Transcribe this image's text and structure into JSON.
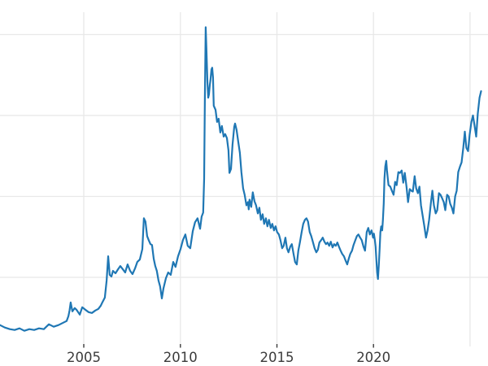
{
  "figure": {
    "background_color": "#ffffff",
    "title": "",
    "y_axis_labels_visible": false
  },
  "chart_data": {
    "type": "line",
    "title": "",
    "xlabel": "",
    "ylabel": "",
    "grid": true,
    "legend": false,
    "colors": {
      "line": "#1f77b4",
      "gridline": "#e8e8e8",
      "tick": "#3b3b3b",
      "tick_label": "#3b3b3b"
    },
    "x_range": [
      2000.66,
      2025.93
    ],
    "y_range": [
      1.76,
      42.76
    ],
    "x_gridline_years": [
      2005,
      2010,
      2015,
      2020,
      2025
    ],
    "x_ticks": [
      {
        "year": 2005,
        "label": "2005"
      },
      {
        "year": 2010,
        "label": "2010"
      },
      {
        "year": 2015,
        "label": "2015"
      },
      {
        "year": 2020,
        "label": "2020"
      },
      {
        "year": 2025,
        "label": ""
      }
    ],
    "y_gridlines": [
      10,
      20,
      30,
      40
    ],
    "series": [
      {
        "name": "",
        "color": "#1f77b4",
        "points": [
          [
            2000.66,
            4.1
          ],
          [
            2000.91,
            3.8
          ],
          [
            2001.17,
            3.6
          ],
          [
            2001.42,
            3.5
          ],
          [
            2001.67,
            3.7
          ],
          [
            2001.92,
            3.4
          ],
          [
            2002.18,
            3.6
          ],
          [
            2002.43,
            3.5
          ],
          [
            2002.68,
            3.7
          ],
          [
            2002.93,
            3.6
          ],
          [
            2003.19,
            4.2
          ],
          [
            2003.44,
            3.9
          ],
          [
            2003.69,
            4.1
          ],
          [
            2003.94,
            4.4
          ],
          [
            2004.11,
            4.6
          ],
          [
            2004.2,
            5.2
          ],
          [
            2004.26,
            5.9
          ],
          [
            2004.32,
            6.9
          ],
          [
            2004.41,
            5.8
          ],
          [
            2004.53,
            6.2
          ],
          [
            2004.62,
            6.0
          ],
          [
            2004.79,
            5.4
          ],
          [
            2004.92,
            6.3
          ],
          [
            2005.08,
            6.0
          ],
          [
            2005.25,
            5.7
          ],
          [
            2005.42,
            5.6
          ],
          [
            2005.59,
            5.9
          ],
          [
            2005.75,
            6.1
          ],
          [
            2005.88,
            6.5
          ],
          [
            2005.96,
            6.9
          ],
          [
            2006.09,
            7.5
          ],
          [
            2006.18,
            9.6
          ],
          [
            2006.26,
            12.6
          ],
          [
            2006.34,
            10.3
          ],
          [
            2006.43,
            10.1
          ],
          [
            2006.51,
            10.8
          ],
          [
            2006.64,
            10.5
          ],
          [
            2006.77,
            11.0
          ],
          [
            2006.89,
            11.4
          ],
          [
            2007.02,
            11.0
          ],
          [
            2007.14,
            10.6
          ],
          [
            2007.27,
            11.6
          ],
          [
            2007.4,
            10.8
          ],
          [
            2007.52,
            10.4
          ],
          [
            2007.65,
            11.1
          ],
          [
            2007.77,
            11.9
          ],
          [
            2007.9,
            12.2
          ],
          [
            2008.03,
            13.5
          ],
          [
            2008.11,
            17.3
          ],
          [
            2008.19,
            16.9
          ],
          [
            2008.28,
            15.1
          ],
          [
            2008.36,
            14.6
          ],
          [
            2008.45,
            14.1
          ],
          [
            2008.53,
            14.0
          ],
          [
            2008.62,
            12.3
          ],
          [
            2008.7,
            11.4
          ],
          [
            2008.78,
            10.8
          ],
          [
            2008.87,
            9.6
          ],
          [
            2008.95,
            8.9
          ],
          [
            2009.04,
            7.4
          ],
          [
            2009.12,
            8.6
          ],
          [
            2009.25,
            9.9
          ],
          [
            2009.37,
            10.6
          ],
          [
            2009.5,
            10.3
          ],
          [
            2009.63,
            11.9
          ],
          [
            2009.75,
            11.3
          ],
          [
            2009.88,
            12.6
          ],
          [
            2010.01,
            13.5
          ],
          [
            2010.13,
            14.6
          ],
          [
            2010.26,
            15.3
          ],
          [
            2010.38,
            13.9
          ],
          [
            2010.51,
            13.6
          ],
          [
            2010.64,
            15.7
          ],
          [
            2010.76,
            16.8
          ],
          [
            2010.89,
            17.3
          ],
          [
            2011.02,
            16.0
          ],
          [
            2011.1,
            17.5
          ],
          [
            2011.18,
            18.0
          ],
          [
            2011.23,
            22.2
          ],
          [
            2011.27,
            32.2
          ],
          [
            2011.31,
            40.9
          ],
          [
            2011.35,
            38.2
          ],
          [
            2011.4,
            34.2
          ],
          [
            2011.44,
            32.2
          ],
          [
            2011.48,
            32.6
          ],
          [
            2011.52,
            33.7
          ],
          [
            2011.56,
            34.4
          ],
          [
            2011.61,
            35.7
          ],
          [
            2011.65,
            35.9
          ],
          [
            2011.69,
            34.7
          ],
          [
            2011.73,
            31.2
          ],
          [
            2011.82,
            30.7
          ],
          [
            2011.9,
            29.2
          ],
          [
            2011.98,
            29.6
          ],
          [
            2012.07,
            27.9
          ],
          [
            2012.15,
            28.7
          ],
          [
            2012.24,
            27.4
          ],
          [
            2012.32,
            27.7
          ],
          [
            2012.41,
            27.2
          ],
          [
            2012.49,
            25.7
          ],
          [
            2012.54,
            22.9
          ],
          [
            2012.62,
            23.4
          ],
          [
            2012.7,
            26.4
          ],
          [
            2012.79,
            28.6
          ],
          [
            2012.83,
            29.0
          ],
          [
            2012.91,
            28.2
          ],
          [
            2013.0,
            26.7
          ],
          [
            2013.08,
            25.4
          ],
          [
            2013.16,
            23.0
          ],
          [
            2013.25,
            21.0
          ],
          [
            2013.33,
            20.2
          ],
          [
            2013.42,
            18.9
          ],
          [
            2013.5,
            19.3
          ],
          [
            2013.54,
            18.4
          ],
          [
            2013.58,
            19.6
          ],
          [
            2013.67,
            18.7
          ],
          [
            2013.75,
            20.5
          ],
          [
            2013.84,
            19.4
          ],
          [
            2013.92,
            18.9
          ],
          [
            2014.01,
            17.9
          ],
          [
            2014.09,
            18.6
          ],
          [
            2014.17,
            17.1
          ],
          [
            2014.26,
            17.8
          ],
          [
            2014.34,
            16.6
          ],
          [
            2014.43,
            17.3
          ],
          [
            2014.51,
            16.3
          ],
          [
            2014.59,
            17.1
          ],
          [
            2014.68,
            16.1
          ],
          [
            2014.76,
            16.6
          ],
          [
            2014.85,
            15.8
          ],
          [
            2014.93,
            16.3
          ],
          [
            2015.01,
            15.6
          ],
          [
            2015.1,
            15.3
          ],
          [
            2015.18,
            14.6
          ],
          [
            2015.27,
            13.6
          ],
          [
            2015.35,
            13.9
          ],
          [
            2015.44,
            14.9
          ],
          [
            2015.52,
            13.6
          ],
          [
            2015.6,
            13.1
          ],
          [
            2015.69,
            13.8
          ],
          [
            2015.77,
            14.1
          ],
          [
            2015.86,
            12.9
          ],
          [
            2015.94,
            11.9
          ],
          [
            2016.03,
            11.6
          ],
          [
            2016.11,
            13.3
          ],
          [
            2016.19,
            14.3
          ],
          [
            2016.28,
            15.6
          ],
          [
            2016.36,
            16.6
          ],
          [
            2016.45,
            17.1
          ],
          [
            2016.53,
            17.3
          ],
          [
            2016.61,
            16.9
          ],
          [
            2016.7,
            15.6
          ],
          [
            2016.78,
            15.1
          ],
          [
            2016.87,
            14.3
          ],
          [
            2016.95,
            13.6
          ],
          [
            2017.04,
            13.1
          ],
          [
            2017.12,
            13.4
          ],
          [
            2017.2,
            14.3
          ],
          [
            2017.29,
            14.6
          ],
          [
            2017.37,
            14.9
          ],
          [
            2017.46,
            14.4
          ],
          [
            2017.54,
            14.1
          ],
          [
            2017.62,
            14.3
          ],
          [
            2017.71,
            13.9
          ],
          [
            2017.79,
            14.4
          ],
          [
            2017.88,
            13.7
          ],
          [
            2017.96,
            14.1
          ],
          [
            2018.05,
            13.9
          ],
          [
            2018.13,
            14.3
          ],
          [
            2018.21,
            13.8
          ],
          [
            2018.3,
            13.3
          ],
          [
            2018.38,
            12.9
          ],
          [
            2018.47,
            12.6
          ],
          [
            2018.55,
            12.1
          ],
          [
            2018.64,
            11.6
          ],
          [
            2018.72,
            12.3
          ],
          [
            2018.8,
            12.9
          ],
          [
            2018.89,
            13.3
          ],
          [
            2018.97,
            14.0
          ],
          [
            2019.06,
            14.6
          ],
          [
            2019.14,
            15.1
          ],
          [
            2019.22,
            15.3
          ],
          [
            2019.31,
            14.9
          ],
          [
            2019.39,
            14.6
          ],
          [
            2019.48,
            13.8
          ],
          [
            2019.56,
            13.3
          ],
          [
            2019.65,
            15.6
          ],
          [
            2019.73,
            16.1
          ],
          [
            2019.81,
            15.3
          ],
          [
            2019.9,
            15.8
          ],
          [
            2019.98,
            14.9
          ],
          [
            2020.02,
            15.4
          ],
          [
            2020.07,
            14.6
          ],
          [
            2020.11,
            13.8
          ],
          [
            2020.15,
            12.1
          ],
          [
            2020.19,
            10.6
          ],
          [
            2020.23,
            9.8
          ],
          [
            2020.28,
            11.6
          ],
          [
            2020.32,
            13.6
          ],
          [
            2020.36,
            15.6
          ],
          [
            2020.4,
            16.3
          ],
          [
            2020.45,
            15.8
          ],
          [
            2020.49,
            17.1
          ],
          [
            2020.53,
            19.1
          ],
          [
            2020.57,
            22.2
          ],
          [
            2020.61,
            23.7
          ],
          [
            2020.66,
            24.4
          ],
          [
            2020.7,
            23.2
          ],
          [
            2020.74,
            22.2
          ],
          [
            2020.78,
            21.4
          ],
          [
            2020.87,
            21.2
          ],
          [
            2020.95,
            20.7
          ],
          [
            2021.04,
            20.2
          ],
          [
            2021.12,
            21.8
          ],
          [
            2021.2,
            21.4
          ],
          [
            2021.29,
            23.0
          ],
          [
            2021.37,
            22.9
          ],
          [
            2021.46,
            23.2
          ],
          [
            2021.54,
            21.7
          ],
          [
            2021.62,
            22.9
          ],
          [
            2021.71,
            21.2
          ],
          [
            2021.79,
            19.3
          ],
          [
            2021.88,
            20.9
          ],
          [
            2021.96,
            20.7
          ],
          [
            2022.04,
            20.6
          ],
          [
            2022.13,
            22.5
          ],
          [
            2022.21,
            21.0
          ],
          [
            2022.3,
            20.4
          ],
          [
            2022.38,
            21.2
          ],
          [
            2022.46,
            18.9
          ],
          [
            2022.55,
            17.6
          ],
          [
            2022.63,
            16.4
          ],
          [
            2022.72,
            14.9
          ],
          [
            2022.8,
            15.8
          ],
          [
            2022.88,
            17.1
          ],
          [
            2022.97,
            19.1
          ],
          [
            2023.05,
            20.7
          ],
          [
            2023.13,
            18.9
          ],
          [
            2023.22,
            17.9
          ],
          [
            2023.3,
            18.3
          ],
          [
            2023.39,
            20.4
          ],
          [
            2023.47,
            20.2
          ],
          [
            2023.55,
            19.8
          ],
          [
            2023.64,
            19.3
          ],
          [
            2023.72,
            18.3
          ],
          [
            2023.81,
            20.2
          ],
          [
            2023.89,
            20.0
          ],
          [
            2023.97,
            19.1
          ],
          [
            2024.06,
            18.6
          ],
          [
            2024.14,
            17.9
          ],
          [
            2024.23,
            20.0
          ],
          [
            2024.31,
            20.7
          ],
          [
            2024.39,
            23.0
          ],
          [
            2024.48,
            23.7
          ],
          [
            2024.56,
            24.2
          ],
          [
            2024.65,
            26.0
          ],
          [
            2024.73,
            28.0
          ],
          [
            2024.81,
            26.0
          ],
          [
            2024.9,
            25.6
          ],
          [
            2024.98,
            27.6
          ],
          [
            2025.07,
            29.2
          ],
          [
            2025.15,
            30.0
          ],
          [
            2025.23,
            28.8
          ],
          [
            2025.32,
            27.4
          ],
          [
            2025.4,
            30.2
          ],
          [
            2025.49,
            32.2
          ],
          [
            2025.57,
            33.0
          ]
        ]
      }
    ]
  }
}
